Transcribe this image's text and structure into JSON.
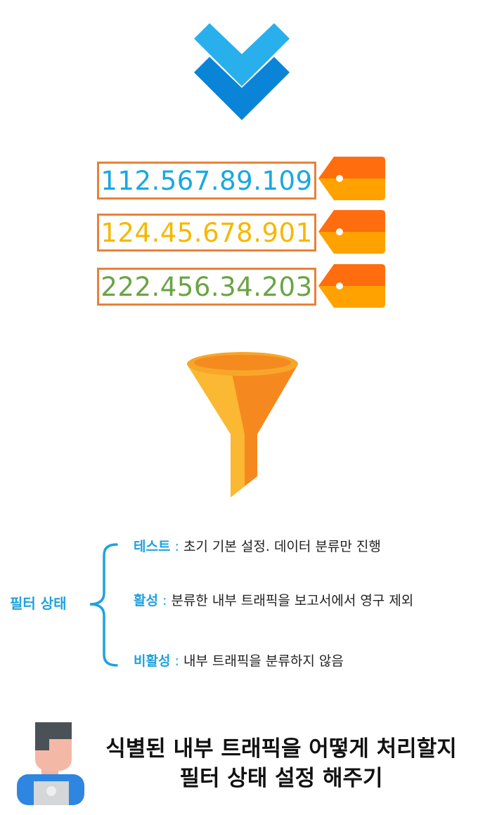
{
  "ip_tags": [
    {
      "ip": "112.567.89.109",
      "color": "#18a8e0"
    },
    {
      "ip": "124.45.678.901",
      "color": "#f5b800"
    },
    {
      "ip": "222.456.34.203",
      "color": "#6aa444"
    }
  ],
  "filter_status": {
    "label": "필터 상태",
    "items": [
      {
        "key": "테스트",
        "sep": " : ",
        "desc": "초기 기본 설정. 데이터 분류만 진행"
      },
      {
        "key": "활성",
        "sep": " : ",
        "desc": "분류한 내부 트래픽을 보고서에서 영구 제외"
      },
      {
        "key": "비활성",
        "sep": " : ",
        "desc": "내부 트래픽을 분류하지 않음"
      }
    ]
  },
  "footer": {
    "line1": "식별된 내부 트래픽을 어떻게 처리할지",
    "line2": "필터 상태 설정 해주기"
  },
  "colors": {
    "accent": "#1fa2dd",
    "box_border": "#e8813a",
    "tag_orange": "#ff8a00",
    "funnel": "#f5a623"
  },
  "icons": [
    "double-chevron-down-icon",
    "price-tag-icon",
    "funnel-icon",
    "brace-icon",
    "person-laptop-icon"
  ]
}
